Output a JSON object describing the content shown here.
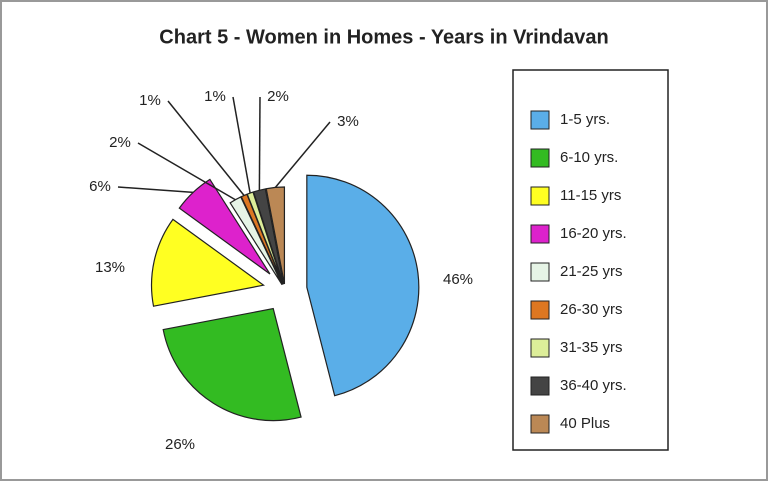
{
  "chart_data": {
    "type": "pie",
    "title": "Chart 5 - Women in Homes - Years in Vrindavan",
    "categories": [
      "1-5 yrs.",
      "6-10 yrs.",
      "11-15 yrs",
      "16-20 yrs.",
      "21-25 yrs",
      "26-30 yrs",
      "31-35 yrs",
      "36-40 yrs.",
      "40 Plus"
    ],
    "values": [
      46,
      26,
      13,
      6,
      2,
      1,
      1,
      2,
      3
    ],
    "value_labels": [
      "46%",
      "26%",
      "13%",
      "6%",
      "2%",
      "1%",
      "1%",
      "2%",
      "3%"
    ],
    "colors": [
      "#5aaee8",
      "#33bb22",
      "#ffff22",
      "#dd22cc",
      "#e6f4e6",
      "#dd7722",
      "#ddee99",
      "#444444",
      "#bb8855"
    ],
    "legend": "right"
  }
}
